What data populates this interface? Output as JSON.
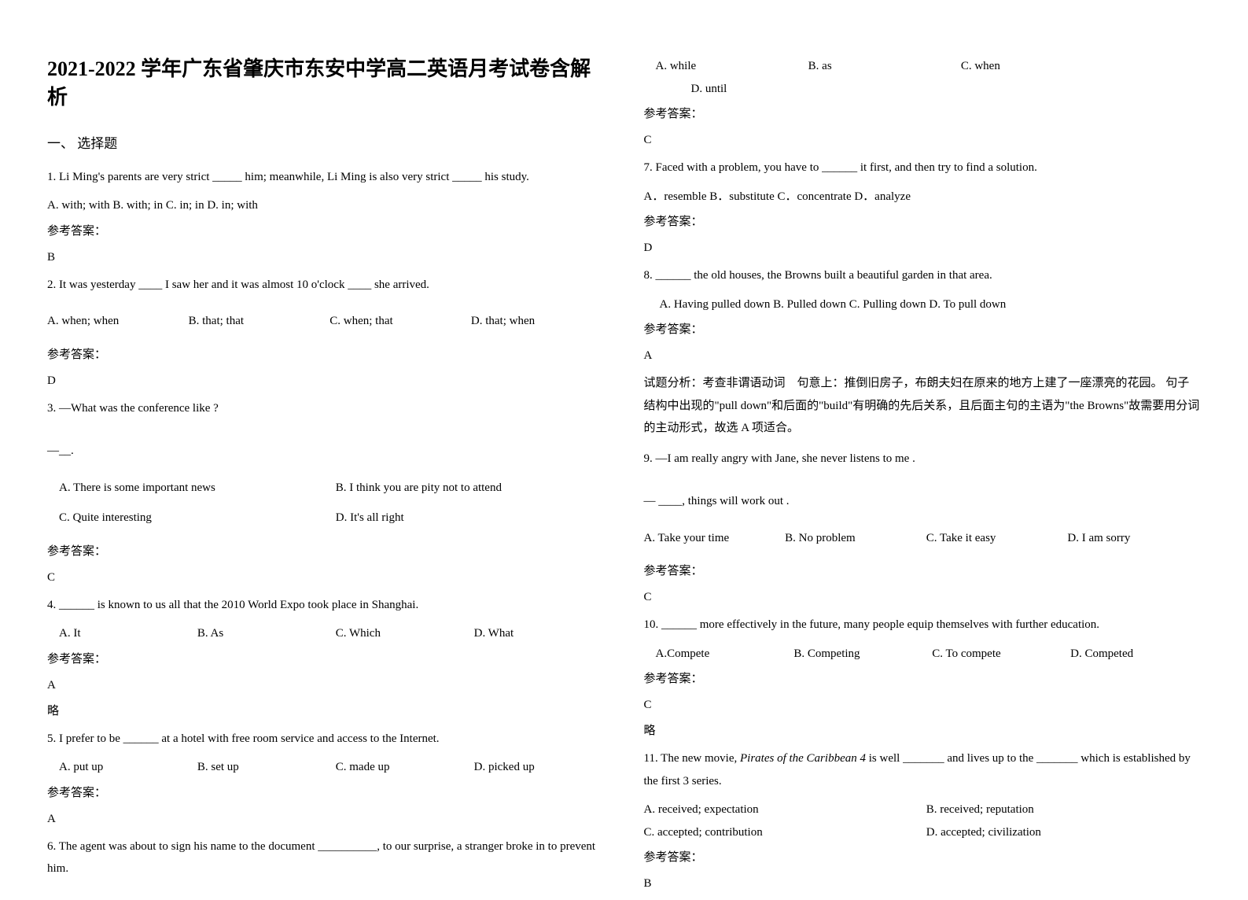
{
  "title": "2021-2022 学年广东省肇庆市东安中学高二英语月考试卷含解析",
  "section_heading": "一、 选择题",
  "answer_label": "参考答案：",
  "omit": "略",
  "q1": {
    "text": "1. Li Ming's parents are very strict _____ him; meanwhile, Li Ming is also very strict _____ his study.",
    "opts": "A. with; with   B. with; in   C. in; in   D. in; with",
    "answer": "B"
  },
  "q2": {
    "text": "2. It was yesterday ____ I saw her and it was almost 10 o'clock ____ she arrived.",
    "a": "A. when; when",
    "b": "B. that; that",
    "c": "C. when; that",
    "d": "D. that; when",
    "answer": "D"
  },
  "q3": {
    "text": "3. —What was the conference like ?",
    "dash": "—__.",
    "a": "A. There is some important news",
    "b": "B. I think you are pity not to attend",
    "c": "C. Quite interesting",
    "d": "D. It's all right",
    "answer": "C"
  },
  "q4": {
    "text": "4. ______ is known to us all that the 2010 World Expo took place in Shanghai.",
    "a": "A. It",
    "b": "B. As",
    "c": "C. Which",
    "d": "D. What",
    "answer": "A"
  },
  "q5": {
    "text": "5. I prefer to be ______ at a hotel with free room service and access to the Internet.",
    "a": "A. put up",
    "b": "B. set up",
    "c": "C. made up",
    "d": "D. picked up",
    "answer": "A"
  },
  "q6": {
    "text": "6. The agent was about to sign his name to the document __________, to our surprise, a stranger broke in to prevent him.",
    "a": "A. while",
    "b": "B. as",
    "c": "C. when",
    "d": "D. until",
    "answer": "C"
  },
  "q7": {
    "text": "7. Faced with a problem, you have to ______ it first, and then try to find a solution.",
    "opts": "A．resemble   B．substitute   C．concentrate   D．analyze",
    "answer": "D"
  },
  "q8": {
    "text": "8. ______ the old houses, the Browns built a beautiful garden in that area.",
    "opts": "A. Having pulled down   B. Pulled down   C. Pulling down   D. To pull down",
    "answer": "A",
    "analysis": "试题分析：考查非谓语动词　句意上：推倒旧房子，布朗夫妇在原来的地方上建了一座漂亮的花园。 句子结构中出现的\"pull down\"和后面的\"build\"有明确的先后关系，且后面主句的主语为\"the Browns\"故需要用分词的主动形式，故选 A 项适合。"
  },
  "q9": {
    "text": "9. —I am really angry with Jane, she never listens to me .",
    "dash": "— ____, things will work out .",
    "a": "A. Take your time",
    "b": "B. No problem",
    "c": "C. Take it easy",
    "d": "D. I am sorry",
    "answer": "C"
  },
  "q10": {
    "text": "10. ______ more effectively in the future, many people equip themselves with further education.",
    "a": "A.Compete",
    "b": "B. Competing",
    "c": "C. To compete",
    "d": "D. Competed",
    "answer": "C"
  },
  "q11": {
    "text_prefix": "11. The new movie, ",
    "text_italic": "Pirates of the Caribbean 4",
    "text_suffix": " is well _______ and lives up to the _______ which is established by the first 3 series.",
    "a": "A. received; expectation",
    "b": "B. received; reputation",
    "c": "C. accepted; contribution",
    "d": "D. accepted; civilization",
    "answer": "B"
  }
}
